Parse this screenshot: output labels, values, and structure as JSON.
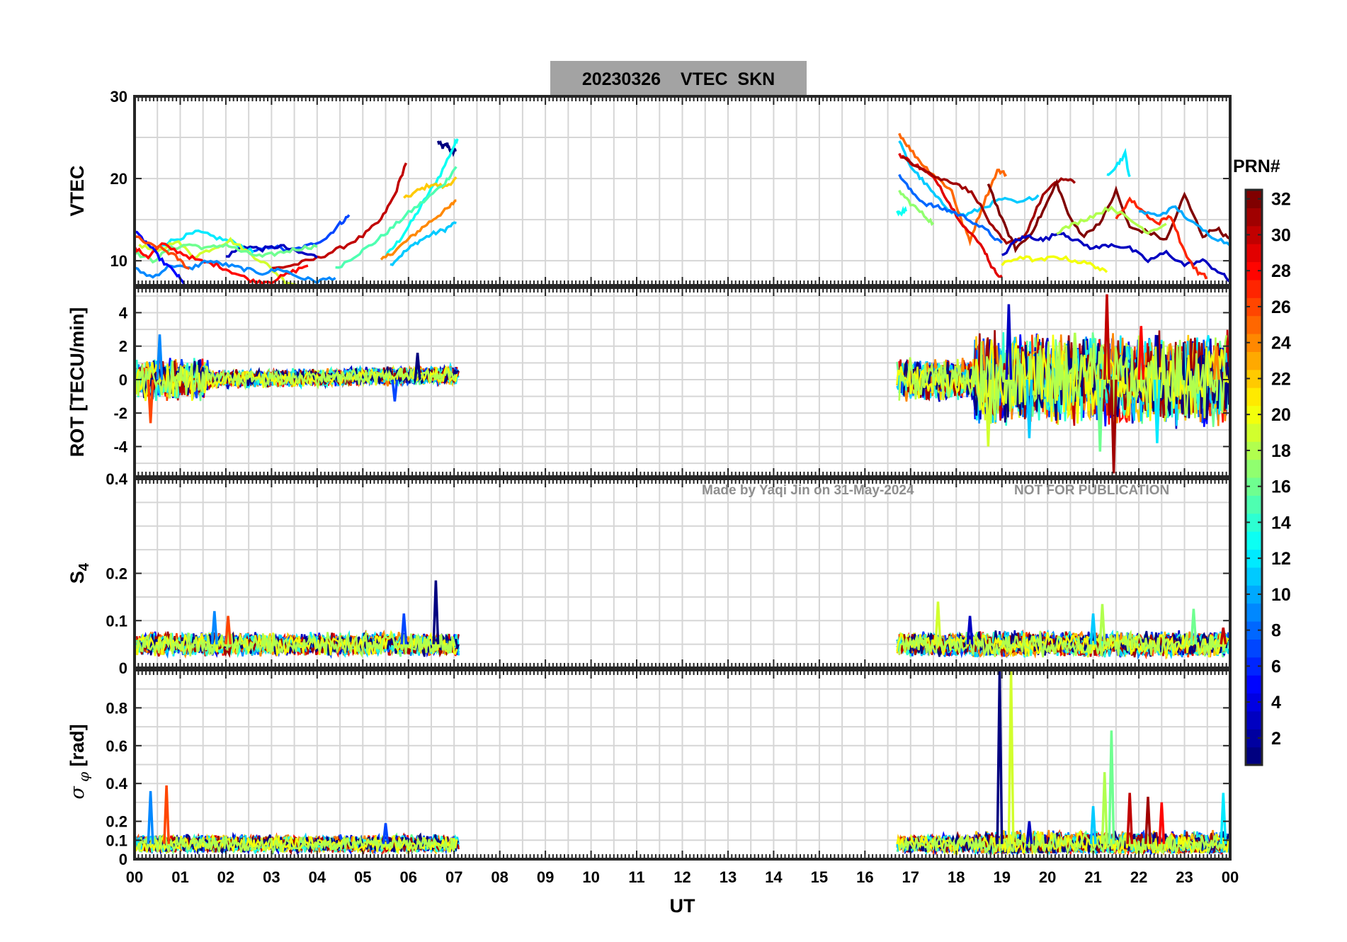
{
  "title": "20230326    VTEC  SKN",
  "watermark_left": "Made by Yaqi Jin on 31-May-2024",
  "watermark_right": "NOT FOR PUBLICATION",
  "colorbar": {
    "label": "PRN#",
    "range": [
      1,
      32
    ],
    "ticks": [
      "2",
      "4",
      "6",
      "8",
      "10",
      "12",
      "14",
      "16",
      "18",
      "20",
      "22",
      "24",
      "26",
      "28",
      "30",
      "32"
    ],
    "colormap": "jet"
  },
  "chart_data": [
    {
      "type": "line",
      "panel": "vtec",
      "ylabel": "VTEC",
      "xlabel": "",
      "xlim": [
        0,
        24
      ],
      "ylim": [
        7,
        30
      ],
      "yticks": [
        10,
        20,
        30
      ],
      "ytick_labels": [
        "10",
        "20",
        "30"
      ],
      "grid": true,
      "series_note": "one trace per satellite PRN, colored by PRN",
      "series": [
        {
          "prn": 1,
          "x": [
            6.65,
            6.75,
            6.85,
            6.95,
            7.05
          ],
          "y": [
            24.5,
            23.8,
            24.2,
            23.1,
            23.6
          ]
        },
        {
          "prn": 13,
          "x": [
            5.5,
            5.8,
            6.1,
            6.4,
            6.7,
            7.0,
            7.08
          ],
          "y": [
            10.5,
            12.5,
            15.0,
            17.8,
            20.5,
            24.0,
            25.0
          ]
        },
        {
          "prn": 11,
          "x": [
            5.6,
            5.9,
            6.2,
            6.5,
            6.8,
            7.05
          ],
          "y": [
            9.5,
            11.0,
            12.3,
            13.2,
            13.8,
            14.7
          ]
        },
        {
          "prn": 22,
          "x": [
            5.9,
            6.2,
            6.5,
            6.8,
            7.05
          ],
          "y": [
            17.5,
            18.5,
            19.3,
            19.0,
            20.0
          ]
        },
        {
          "prn": 24,
          "x": [
            5.4,
            5.7,
            6.0,
            6.3,
            6.6,
            6.9,
            7.05
          ],
          "y": [
            10.0,
            11.2,
            12.6,
            14.0,
            15.3,
            16.5,
            17.5
          ]
        },
        {
          "prn": 15,
          "x": [
            4.4,
            4.8,
            5.2,
            5.6,
            6.0,
            6.4,
            6.8,
            7.05
          ],
          "y": [
            9.0,
            10.5,
            12.0,
            13.8,
            15.8,
            17.5,
            19.5,
            21.5
          ]
        },
        {
          "prn": 30,
          "x": [
            3.0,
            3.5,
            4.0,
            4.5,
            5.0,
            5.4,
            5.7,
            5.95
          ],
          "y": [
            9.0,
            9.5,
            10.3,
            11.5,
            13.0,
            15.0,
            18.0,
            22.0
          ]
        },
        {
          "prn": 7,
          "x": [
            2.6,
            3.0,
            3.4,
            3.8,
            4.2,
            4.5,
            4.7
          ],
          "y": [
            11.0,
            11.8,
            11.2,
            11.8,
            12.8,
            14.5,
            15.5
          ]
        },
        {
          "prn": 3,
          "x": [
            2.0,
            2.4,
            2.8,
            3.2,
            3.6,
            4.0
          ],
          "y": [
            10.5,
            11.8,
            11.4,
            11.8,
            11.0,
            10.5
          ]
        },
        {
          "prn": 12,
          "x": [
            0.6,
            1.0,
            1.4,
            1.8,
            2.2,
            2.6
          ],
          "y": [
            12.0,
            12.8,
            13.5,
            12.8,
            12.2,
            11.0
          ]
        },
        {
          "prn": 19,
          "x": [
            0.1,
            0.5,
            0.9,
            1.3,
            1.7,
            2.1,
            2.5,
            2.9,
            3.3,
            3.6
          ],
          "y": [
            12.0,
            11.0,
            12.5,
            10.5,
            11.5,
            12.5,
            11.0,
            9.5,
            7.5,
            7.0
          ]
        },
        {
          "prn": 16,
          "x": [
            0.0,
            0.4,
            0.8,
            1.2,
            1.6,
            2.0,
            2.4,
            2.8,
            3.2,
            3.6,
            4.0
          ],
          "y": [
            11.0,
            10.0,
            11.5,
            12.0,
            11.5,
            12.0,
            11.0,
            10.5,
            11.0,
            11.5,
            11.8
          ]
        },
        {
          "prn": 28,
          "x": [
            0.0,
            0.3,
            0.6,
            1.0,
            1.4,
            1.8,
            2.2,
            2.6,
            3.0,
            3.4,
            3.8
          ],
          "y": [
            11.5,
            10.5,
            12.0,
            11.0,
            10.0,
            9.5,
            8.5,
            7.5,
            7.5,
            8.5,
            9.5
          ]
        },
        {
          "prn": 9,
          "x": [
            0.0,
            0.4,
            0.8,
            1.2,
            1.6,
            2.0,
            2.4,
            2.8,
            3.2,
            3.6,
            4.0,
            4.4
          ],
          "y": [
            9.0,
            8.0,
            9.5,
            9.0,
            10.0,
            9.5,
            9.0,
            8.5,
            9.0,
            8.0,
            7.5,
            8.0
          ]
        },
        {
          "prn": 5,
          "x": [
            0.0,
            0.3,
            0.6,
            0.9,
            1.1
          ],
          "y": [
            13.5,
            12.0,
            10.0,
            8.5,
            7.0
          ]
        },
        {
          "prn": 26,
          "x": [
            0.0,
            0.3,
            0.6,
            0.9,
            1.2
          ],
          "y": [
            13.0,
            12.0,
            11.5,
            10.5,
            9.0
          ]
        },
        {
          "prn": 13,
          "x": [
            16.7,
            16.8,
            16.9
          ],
          "y": [
            16.0,
            15.8,
            16.2
          ]
        },
        {
          "prn": 11,
          "x": [
            16.75,
            17.0,
            17.3,
            17.6,
            17.9,
            18.2,
            18.6,
            19.0,
            19.4,
            19.8
          ],
          "y": [
            24.5,
            21.5,
            19.5,
            17.5,
            16.0,
            15.5,
            16.5,
            17.5,
            17.0,
            18.0
          ]
        },
        {
          "prn": 25,
          "x": [
            16.75,
            17.0,
            17.3,
            17.6,
            17.9,
            18.1,
            18.3,
            18.6,
            18.9,
            19.1
          ],
          "y": [
            25.5,
            23.5,
            21.5,
            20.0,
            18.5,
            15.0,
            12.5,
            17.0,
            21.0,
            20.5
          ]
        },
        {
          "prn": 29,
          "x": [
            16.75,
            17.0,
            17.3,
            17.6,
            17.9,
            18.2,
            18.6,
            18.8,
            19.0
          ],
          "y": [
            23.0,
            22.0,
            21.0,
            19.5,
            16.5,
            14.0,
            11.5,
            9.0,
            8.0
          ]
        },
        {
          "prn": 8,
          "x": [
            16.75,
            17.0,
            17.3,
            17.6,
            17.9,
            18.3,
            18.7,
            19.0
          ],
          "y": [
            20.5,
            18.5,
            17.0,
            16.5,
            16.0,
            15.0,
            13.5,
            12.0
          ]
        },
        {
          "prn": 17,
          "x": [
            16.75,
            17.0,
            17.3,
            17.5
          ],
          "y": [
            18.5,
            17.0,
            15.5,
            14.5
          ]
        },
        {
          "prn": 31,
          "x": [
            16.8,
            17.2,
            17.6,
            18.0,
            18.4,
            18.8,
            19.1,
            19.5,
            19.9,
            20.3,
            20.6
          ],
          "y": [
            22.5,
            21.5,
            20.0,
            19.5,
            18.0,
            14.0,
            12.0,
            13.0,
            18.0,
            20.0,
            19.5
          ]
        },
        {
          "prn": 32,
          "x": [
            18.7,
            19.0,
            19.3,
            19.6,
            19.9,
            20.2,
            20.5,
            20.8,
            21.2,
            21.5,
            21.8,
            22.2,
            22.6,
            23.0,
            23.4,
            23.7,
            24.0
          ],
          "y": [
            19.5,
            15.0,
            11.5,
            13.0,
            16.0,
            19.5,
            15.0,
            13.0,
            15.0,
            18.5,
            14.0,
            13.5,
            12.5,
            18.0,
            13.0,
            14.0,
            12.5
          ]
        },
        {
          "prn": 3,
          "x": [
            19.0,
            19.3,
            19.6,
            19.9,
            20.3,
            20.6,
            21.0,
            21.4,
            21.8,
            22.2,
            22.6,
            23.0,
            23.4,
            23.8,
            24.0
          ],
          "y": [
            10.5,
            12.5,
            13.0,
            12.5,
            13.5,
            12.5,
            11.5,
            12.0,
            11.5,
            10.0,
            11.0,
            9.5,
            10.0,
            8.5,
            7.5
          ]
        },
        {
          "prn": 20,
          "x": [
            19.0,
            19.4,
            19.8,
            20.2,
            20.6,
            21.0,
            21.3
          ],
          "y": [
            9.5,
            10.5,
            10.0,
            10.5,
            10.0,
            9.5,
            8.5
          ]
        },
        {
          "prn": 12,
          "x": [
            21.3,
            21.5,
            21.7,
            21.8
          ],
          "y": [
            20.5,
            21.5,
            23.0,
            20.0
          ]
        },
        {
          "prn": 27,
          "x": [
            21.5,
            21.8,
            22.1,
            22.4,
            22.7,
            23.0,
            23.3,
            23.5
          ],
          "y": [
            15.0,
            17.5,
            16.0,
            14.5,
            15.5,
            11.0,
            8.5,
            8.0
          ]
        },
        {
          "prn": 10,
          "x": [
            22.0,
            22.4,
            22.8,
            23.2,
            23.6,
            24.0
          ],
          "y": [
            16.0,
            15.5,
            16.5,
            14.5,
            13.0,
            12.0
          ]
        },
        {
          "prn": 18,
          "x": [
            20.2,
            20.6,
            21.0,
            21.4,
            21.8,
            22.2,
            22.6
          ],
          "y": [
            13.5,
            14.5,
            15.5,
            16.5,
            15.0,
            13.5,
            14.5
          ]
        }
      ]
    },
    {
      "type": "line",
      "panel": "rot",
      "ylabel": "ROT [TECU/min]",
      "xlabel": "",
      "xlim": [
        0,
        24
      ],
      "ylim": [
        -5.8,
        5.5
      ],
      "yticks": [
        -4,
        -2,
        0,
        2,
        4
      ],
      "ytick_labels": [
        "-4",
        "-2",
        "0",
        "2",
        "4"
      ],
      "grid": true,
      "series_note": "noisy rate of TEC, one trace per PRN",
      "visible_range": [
        [
          0.0,
          7.1
        ],
        [
          16.7,
          24.0
        ]
      ],
      "spikes": [
        {
          "x": 0.55,
          "y": 2.7
        },
        {
          "x": 0.35,
          "y": -2.6
        },
        {
          "x": 5.7,
          "y": -1.3
        },
        {
          "x": 6.2,
          "y": 1.6
        },
        {
          "x": 18.7,
          "y": -4.0
        },
        {
          "x": 19.15,
          "y": 4.5
        },
        {
          "x": 19.6,
          "y": -3.5
        },
        {
          "x": 20.6,
          "y": 2.8
        },
        {
          "x": 21.15,
          "y": -4.3
        },
        {
          "x": 21.3,
          "y": 5.1
        },
        {
          "x": 21.45,
          "y": -5.6
        },
        {
          "x": 22.05,
          "y": 3.2
        },
        {
          "x": 22.4,
          "y": -3.8
        },
        {
          "x": 23.7,
          "y": 2.0
        }
      ]
    },
    {
      "type": "line",
      "panel": "s4",
      "ylabel": "S4",
      "xlabel": "",
      "xlim": [
        0,
        24
      ],
      "ylim": [
        0,
        0.4
      ],
      "yticks": [
        0,
        0.1,
        0.2,
        0.4
      ],
      "ytick_labels": [
        "0",
        "0.1",
        "0.2",
        "0.4"
      ],
      "grid": true,
      "baseline": 0.05,
      "visible_range": [
        [
          0.0,
          7.1
        ],
        [
          16.7,
          24.0
        ]
      ],
      "spikes": [
        {
          "x": 1.75,
          "y": 0.12
        },
        {
          "x": 2.05,
          "y": 0.11
        },
        {
          "x": 5.9,
          "y": 0.115
        },
        {
          "x": 6.6,
          "y": 0.185
        },
        {
          "x": 17.6,
          "y": 0.14
        },
        {
          "x": 18.3,
          "y": 0.11
        },
        {
          "x": 21.0,
          "y": 0.115
        },
        {
          "x": 21.2,
          "y": 0.135
        },
        {
          "x": 23.2,
          "y": 0.125
        },
        {
          "x": 23.85,
          "y": 0.085
        }
      ]
    },
    {
      "type": "line",
      "panel": "sigma_phi",
      "ylabel": "σ_φ [rad]",
      "xlabel": "UT",
      "xlim": [
        0,
        24
      ],
      "ylim": [
        0,
        1
      ],
      "yticks": [
        0,
        0.1,
        0.2,
        0.4,
        0.6,
        0.8
      ],
      "ytick_labels": [
        "0",
        "0.1",
        "0.2",
        "0.4",
        "0.6",
        "0.8"
      ],
      "xticks": [
        0,
        1,
        2,
        3,
        4,
        5,
        6,
        7,
        8,
        9,
        10,
        11,
        12,
        13,
        14,
        15,
        16,
        17,
        18,
        19,
        20,
        21,
        22,
        23,
        24
      ],
      "xtick_labels": [
        "00",
        "01",
        "02",
        "03",
        "04",
        "05",
        "06",
        "07",
        "08",
        "09",
        "10",
        "11",
        "12",
        "13",
        "14",
        "15",
        "16",
        "17",
        "18",
        "19",
        "20",
        "21",
        "22",
        "23",
        "00"
      ],
      "grid": true,
      "baseline": 0.08,
      "visible_range": [
        [
          0.0,
          7.1
        ],
        [
          16.7,
          24.0
        ]
      ],
      "spikes": [
        {
          "x": 0.35,
          "y": 0.36
        },
        {
          "x": 0.7,
          "y": 0.39
        },
        {
          "x": 5.5,
          "y": 0.19
        },
        {
          "x": 18.95,
          "y": 1.0
        },
        {
          "x": 19.2,
          "y": 1.0
        },
        {
          "x": 19.6,
          "y": 0.2
        },
        {
          "x": 21.0,
          "y": 0.28
        },
        {
          "x": 21.25,
          "y": 0.46
        },
        {
          "x": 21.4,
          "y": 0.68
        },
        {
          "x": 21.8,
          "y": 0.35
        },
        {
          "x": 22.2,
          "y": 0.33
        },
        {
          "x": 22.5,
          "y": 0.3
        },
        {
          "x": 23.85,
          "y": 0.35
        }
      ]
    }
  ]
}
